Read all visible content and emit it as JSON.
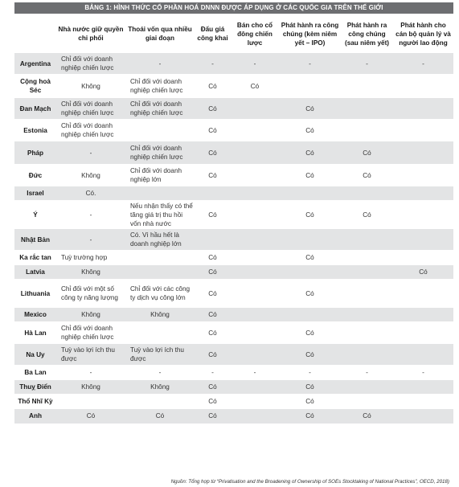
{
  "title": "BẢNG 1: HÌNH THỨC CỔ PHẦN HOÁ DNNN ĐƯỢC ÁP DỤNG Ở CÁC QUỐC GIA TRÊN THẾ GIỚI",
  "columns": [
    "",
    "Nhà nước giữ quyền chi phối",
    "Thoái vốn qua nhiều giai đoạn",
    "Đấu giá công khai",
    "Bán cho cổ đông chiến lược",
    "Phát hành ra công chúng (kèm niêm yết – IPO)",
    "Phát hành ra công chúng (sau niêm yết)",
    "Phát hành cho cán bộ quản lý và người lao động"
  ],
  "rows": [
    [
      "Argentina",
      "Chỉ đối với doanh nghiệp chiến lược",
      "-",
      "-",
      "-",
      "-",
      "-",
      "-"
    ],
    [
      "Cộng hoà Séc",
      "Không",
      "Chỉ đối với doanh nghiệp chiến lược",
      "Có",
      "Có",
      "",
      "",
      ""
    ],
    [
      "Đan Mạch",
      "Chỉ đối với doanh nghiệp chiến lược",
      "Chỉ đối với doanh nghiệp chiến lược",
      "Có",
      "",
      "Có",
      "",
      ""
    ],
    [
      "Estonia",
      "Chỉ đối với doanh nghiệp chiến lược",
      "",
      "Có",
      "",
      "Có",
      "",
      ""
    ],
    [
      "Pháp",
      "-",
      "Chỉ đối với doanh nghiệp chiến lược",
      "Có",
      "",
      "Có",
      "Có",
      ""
    ],
    [
      "Đức",
      "Không",
      "Chỉ đối với doanh nghiệp lớn",
      "Có",
      "",
      "Có",
      "Có",
      ""
    ],
    [
      "Israel",
      "Có.",
      "",
      "",
      "",
      "",
      "",
      ""
    ],
    [
      "Ý",
      "-",
      "Nếu nhận thấy có thể tăng giá trị thu hồi vốn nhà nước",
      "Có",
      "",
      "Có",
      "Có",
      ""
    ],
    [
      "Nhật Bản",
      "-",
      "Có. Vì hầu hết là doanh nghiệp lớn",
      "",
      "",
      "",
      "",
      ""
    ],
    [
      "Ka rắc tan",
      "Tuỳ trường hợp",
      "",
      "Có",
      "",
      "Có",
      "",
      ""
    ],
    [
      "Latvia",
      "Không",
      "",
      "Có",
      "",
      "",
      "",
      "Có"
    ],
    [
      "Lithuania",
      "Chỉ đối với một số công ty năng lượng",
      "Chỉ đối với các công ty dịch vụ công lớn",
      "Có",
      "",
      "Có",
      "",
      ""
    ],
    [
      "Mexico",
      "Không",
      "Không",
      "Có",
      "",
      "",
      "",
      ""
    ],
    [
      "Hà Lan",
      "Chỉ đối với doanh nghiệp chiến lược",
      "",
      "Có",
      "",
      "Có",
      "",
      ""
    ],
    [
      "Na Uy",
      "Tuỳ vào lợi ích thu được",
      "Tuỳ vào lợi ích thu được",
      "Có",
      "",
      "Có",
      "",
      ""
    ],
    [
      "Ba Lan",
      "-",
      "-",
      "-",
      "-",
      "-",
      "-",
      "-"
    ],
    [
      "Thuỵ Điển",
      "Không",
      "Không",
      "Có",
      "",
      "Có",
      "",
      ""
    ],
    [
      "Thổ Nhĩ Kỳ",
      "",
      "",
      "Có",
      "",
      "Có",
      "",
      ""
    ],
    [
      "Anh",
      "Có",
      "Có",
      "Có",
      "",
      "Có",
      "Có",
      ""
    ]
  ],
  "source": "Nguồn: Tổng hợp từ “Privatisation and the Broadening of Ownership of SOEs Stocktaking of National Practices”, OECD, 2018)"
}
